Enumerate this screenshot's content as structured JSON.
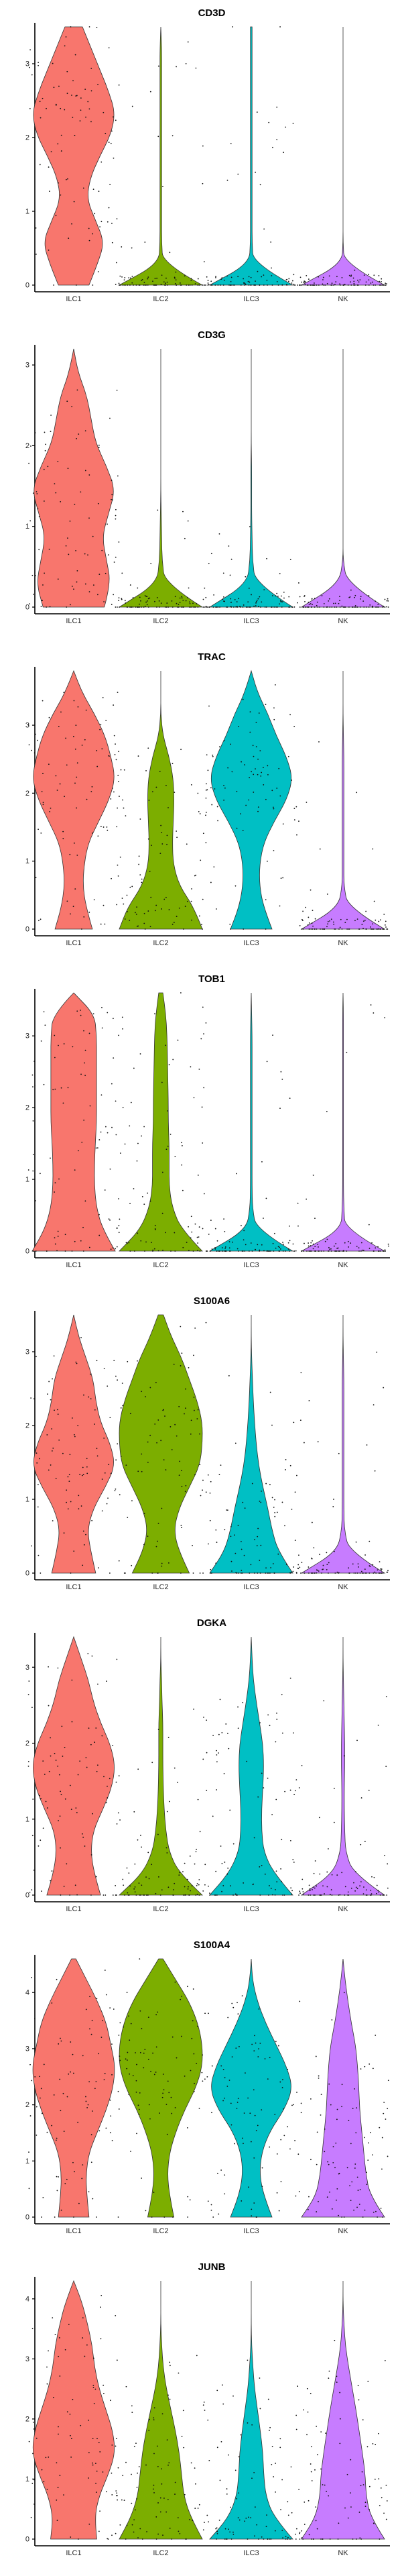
{
  "colors": {
    "ILC1": "#F8766D",
    "ILC2": "#7CAE00",
    "ILC3": "#00BFC4",
    "NK": "#C77CFF"
  },
  "chart_data": [
    {
      "type": "violin",
      "title": "CD3D",
      "categories": [
        "ILC1",
        "ILC2",
        "ILC3",
        "NK"
      ],
      "yticks": [
        0,
        1,
        2,
        3
      ],
      "ylim": [
        0,
        3.5
      ],
      "series": [
        {
          "name": "ILC1",
          "dens": [
            0.35,
            0.55,
            0.7,
            0.5,
            0.3,
            0.38,
            0.6,
            0.85,
            0.95,
            0.8,
            0.6,
            0.4,
            0.2
          ]
        },
        {
          "name": "ILC2",
          "dens": [
            1,
            0.05,
            0.02,
            0.02,
            0.02,
            0.02,
            0.02,
            0.02,
            0.02,
            0.02,
            0.02,
            0.02,
            0
          ]
        },
        {
          "name": "ILC3",
          "dens": [
            1,
            0.05,
            0.02,
            0.02,
            0.02,
            0.02,
            0.02,
            0.02,
            0.02,
            0.02,
            0.02,
            0.02,
            0.02
          ]
        },
        {
          "name": "NK",
          "dens": [
            1,
            0.03,
            0,
            0,
            0,
            0,
            0,
            0,
            0,
            0,
            0,
            0,
            0
          ]
        }
      ]
    },
    {
      "type": "violin",
      "title": "CD3G",
      "categories": [
        "ILC1",
        "ILC2",
        "ILC3",
        "NK"
      ],
      "yticks": [
        0,
        1,
        2,
        3
      ],
      "ylim": [
        0,
        3.2
      ],
      "series": [
        {
          "name": "ILC1",
          "dens": [
            0.7,
            0.85,
            0.75,
            0.65,
            0.8,
            0.95,
            0.75,
            0.5,
            0.4,
            0.3,
            0.1,
            0
          ]
        },
        {
          "name": "ILC2",
          "dens": [
            1,
            0.1,
            0.03,
            0.02,
            0.01,
            0,
            0,
            0,
            0,
            0,
            0,
            0
          ]
        },
        {
          "name": "ILC3",
          "dens": [
            1,
            0.1,
            0.03,
            0.02,
            0.01,
            0.01,
            0.01,
            0,
            0,
            0,
            0,
            0
          ]
        },
        {
          "name": "NK",
          "dens": [
            1,
            0.1,
            0,
            0,
            0,
            0,
            0,
            0,
            0,
            0,
            0,
            0
          ]
        }
      ]
    },
    {
      "type": "violin",
      "title": "TRAC",
      "categories": [
        "ILC1",
        "ILC2",
        "ILC3",
        "NK"
      ],
      "yticks": [
        0,
        1,
        2,
        3
      ],
      "ylim": [
        0,
        3.8
      ],
      "series": [
        {
          "name": "ILC1",
          "dens": [
            0.45,
            0.3,
            0.22,
            0.25,
            0.35,
            0.6,
            0.85,
            1,
            0.9,
            0.75,
            0.5,
            0.2,
            0
          ]
        },
        {
          "name": "ILC2",
          "dens": [
            1,
            0.8,
            0.45,
            0.3,
            0.28,
            0.3,
            0.32,
            0.3,
            0.2,
            0.05,
            0,
            0,
            0
          ]
        },
        {
          "name": "ILC3",
          "dens": [
            0.5,
            0.3,
            0.2,
            0.2,
            0.3,
            0.55,
            0.85,
            1,
            0.85,
            0.6,
            0.4,
            0.15,
            0
          ]
        },
        {
          "name": "NK",
          "dens": [
            1,
            0.12,
            0.02,
            0.02,
            0.02,
            0.02,
            0.02,
            0.02,
            0.02,
            0.01,
            0,
            0,
            0
          ]
        }
      ]
    },
    {
      "type": "violin",
      "title": "TOB1",
      "categories": [
        "ILC1",
        "ILC2",
        "ILC3",
        "NK"
      ],
      "yticks": [
        0,
        1,
        2,
        3
      ],
      "ylim": [
        0,
        3.6
      ],
      "series": [
        {
          "name": "ILC1",
          "dens": [
            1,
            0.7,
            0.55,
            0.5,
            0.5,
            0.52,
            0.55,
            0.55,
            0.55,
            0.55,
            0.55,
            0.5,
            0
          ]
        },
        {
          "name": "ILC2",
          "dens": [
            1,
            0.5,
            0.28,
            0.2,
            0.2,
            0.2,
            0.18,
            0.18,
            0.17,
            0.16,
            0.15,
            0.12,
            0.05
          ]
        },
        {
          "name": "ILC3",
          "dens": [
            1,
            0.12,
            0.03,
            0.02,
            0.02,
            0.02,
            0.02,
            0.02,
            0.02,
            0.02,
            0.02,
            0.01,
            0
          ]
        },
        {
          "name": "NK",
          "dens": [
            1,
            0.05,
            0.02,
            0.01,
            0.01,
            0.01,
            0.01,
            0.01,
            0.01,
            0.01,
            0.01,
            0.01,
            0
          ]
        }
      ]
    },
    {
      "type": "violin",
      "title": "S100A6",
      "categories": [
        "ILC1",
        "ILC2",
        "ILC3",
        "NK"
      ],
      "yticks": [
        0,
        1,
        2,
        3
      ],
      "ylim": [
        0,
        3.5
      ],
      "series": [
        {
          "name": "ILC1",
          "dens": [
            0.45,
            0.35,
            0.28,
            0.4,
            0.65,
            0.85,
            0.75,
            0.55,
            0.45,
            0.4,
            0.25,
            0.1,
            0
          ]
        },
        {
          "name": "ILC2",
          "dens": [
            0.55,
            0.35,
            0.25,
            0.35,
            0.55,
            0.75,
            0.8,
            0.8,
            0.7,
            0.55,
            0.4,
            0.2,
            0.05
          ]
        },
        {
          "name": "ILC3",
          "dens": [
            1,
            0.65,
            0.5,
            0.4,
            0.28,
            0.18,
            0.12,
            0.08,
            0.05,
            0.03,
            0.01,
            0,
            0
          ]
        },
        {
          "name": "NK",
          "dens": [
            1,
            0.15,
            0.03,
            0.02,
            0.02,
            0.02,
            0.02,
            0.02,
            0.02,
            0.02,
            0.01,
            0,
            0
          ]
        }
      ]
    },
    {
      "type": "violin",
      "title": "DGKA",
      "categories": [
        "ILC1",
        "ILC2",
        "ILC3",
        "NK"
      ],
      "yticks": [
        0,
        1,
        2,
        3
      ],
      "ylim": [
        0,
        3.4
      ],
      "series": [
        {
          "name": "ILC1",
          "dens": [
            0.55,
            0.42,
            0.35,
            0.4,
            0.6,
            0.78,
            0.85,
            0.75,
            0.55,
            0.4,
            0.3,
            0.15,
            0
          ]
        },
        {
          "name": "ILC2",
          "dens": [
            1,
            0.45,
            0.2,
            0.12,
            0.08,
            0.06,
            0.05,
            0.05,
            0.05,
            0.03,
            0.02,
            0,
            0
          ]
        },
        {
          "name": "ILC3",
          "dens": [
            1,
            0.55,
            0.3,
            0.25,
            0.25,
            0.28,
            0.3,
            0.28,
            0.2,
            0.12,
            0.05,
            0.02,
            0
          ]
        },
        {
          "name": "NK",
          "dens": [
            1,
            0.25,
            0.06,
            0.04,
            0.03,
            0.03,
            0.04,
            0.04,
            0.03,
            0.02,
            0.01,
            0,
            0
          ]
        }
      ]
    },
    {
      "type": "violin",
      "title": "S100A4",
      "categories": [
        "ILC1",
        "ILC2",
        "ILC3",
        "NK"
      ],
      "yticks": [
        0,
        1,
        2,
        3,
        4
      ],
      "ylim": [
        0,
        4.6
      ],
      "series": [
        {
          "name": "ILC1",
          "dens": [
            0.35,
            0.3,
            0.28,
            0.35,
            0.55,
            0.75,
            0.9,
            0.95,
            0.85,
            0.75,
            0.55,
            0.3,
            0.05
          ]
        },
        {
          "name": "ILC2",
          "dens": [
            0.3,
            0.2,
            0.15,
            0.2,
            0.35,
            0.55,
            0.8,
            0.95,
            0.95,
            0.85,
            0.65,
            0.35,
            0.05
          ]
        },
        {
          "name": "ILC3",
          "dens": [
            0.5,
            0.3,
            0.2,
            0.25,
            0.45,
            0.8,
            1,
            0.85,
            0.6,
            0.35,
            0.15,
            0.03,
            0
          ]
        },
        {
          "name": "NK",
          "dens": [
            1,
            0.65,
            0.55,
            0.5,
            0.45,
            0.4,
            0.38,
            0.35,
            0.3,
            0.2,
            0.12,
            0.05,
            0
          ]
        }
      ]
    },
    {
      "type": "violin",
      "title": "JUNB",
      "categories": [
        "ILC1",
        "ILC2",
        "ILC3",
        "NK"
      ],
      "yticks": [
        0,
        1,
        2,
        3,
        4
      ],
      "ylim": [
        0,
        4.3
      ],
      "series": [
        {
          "name": "ILC1",
          "dens": [
            0.5,
            0.45,
            0.55,
            0.75,
            0.9,
            0.85,
            0.7,
            0.55,
            0.45,
            0.4,
            0.3,
            0.18,
            0
          ]
        },
        {
          "name": "ILC2",
          "dens": [
            0.9,
            0.65,
            0.5,
            0.45,
            0.4,
            0.32,
            0.22,
            0.12,
            0.05,
            0.02,
            0,
            0,
            0
          ]
        },
        {
          "name": "ILC3",
          "dens": [
            1,
            0.55,
            0.35,
            0.3,
            0.28,
            0.22,
            0.15,
            0.08,
            0.04,
            0.01,
            0,
            0,
            0
          ]
        },
        {
          "name": "NK",
          "dens": [
            0.9,
            0.6,
            0.5,
            0.48,
            0.42,
            0.35,
            0.28,
            0.2,
            0.12,
            0.05,
            0.02,
            0,
            0
          ]
        }
      ]
    }
  ]
}
